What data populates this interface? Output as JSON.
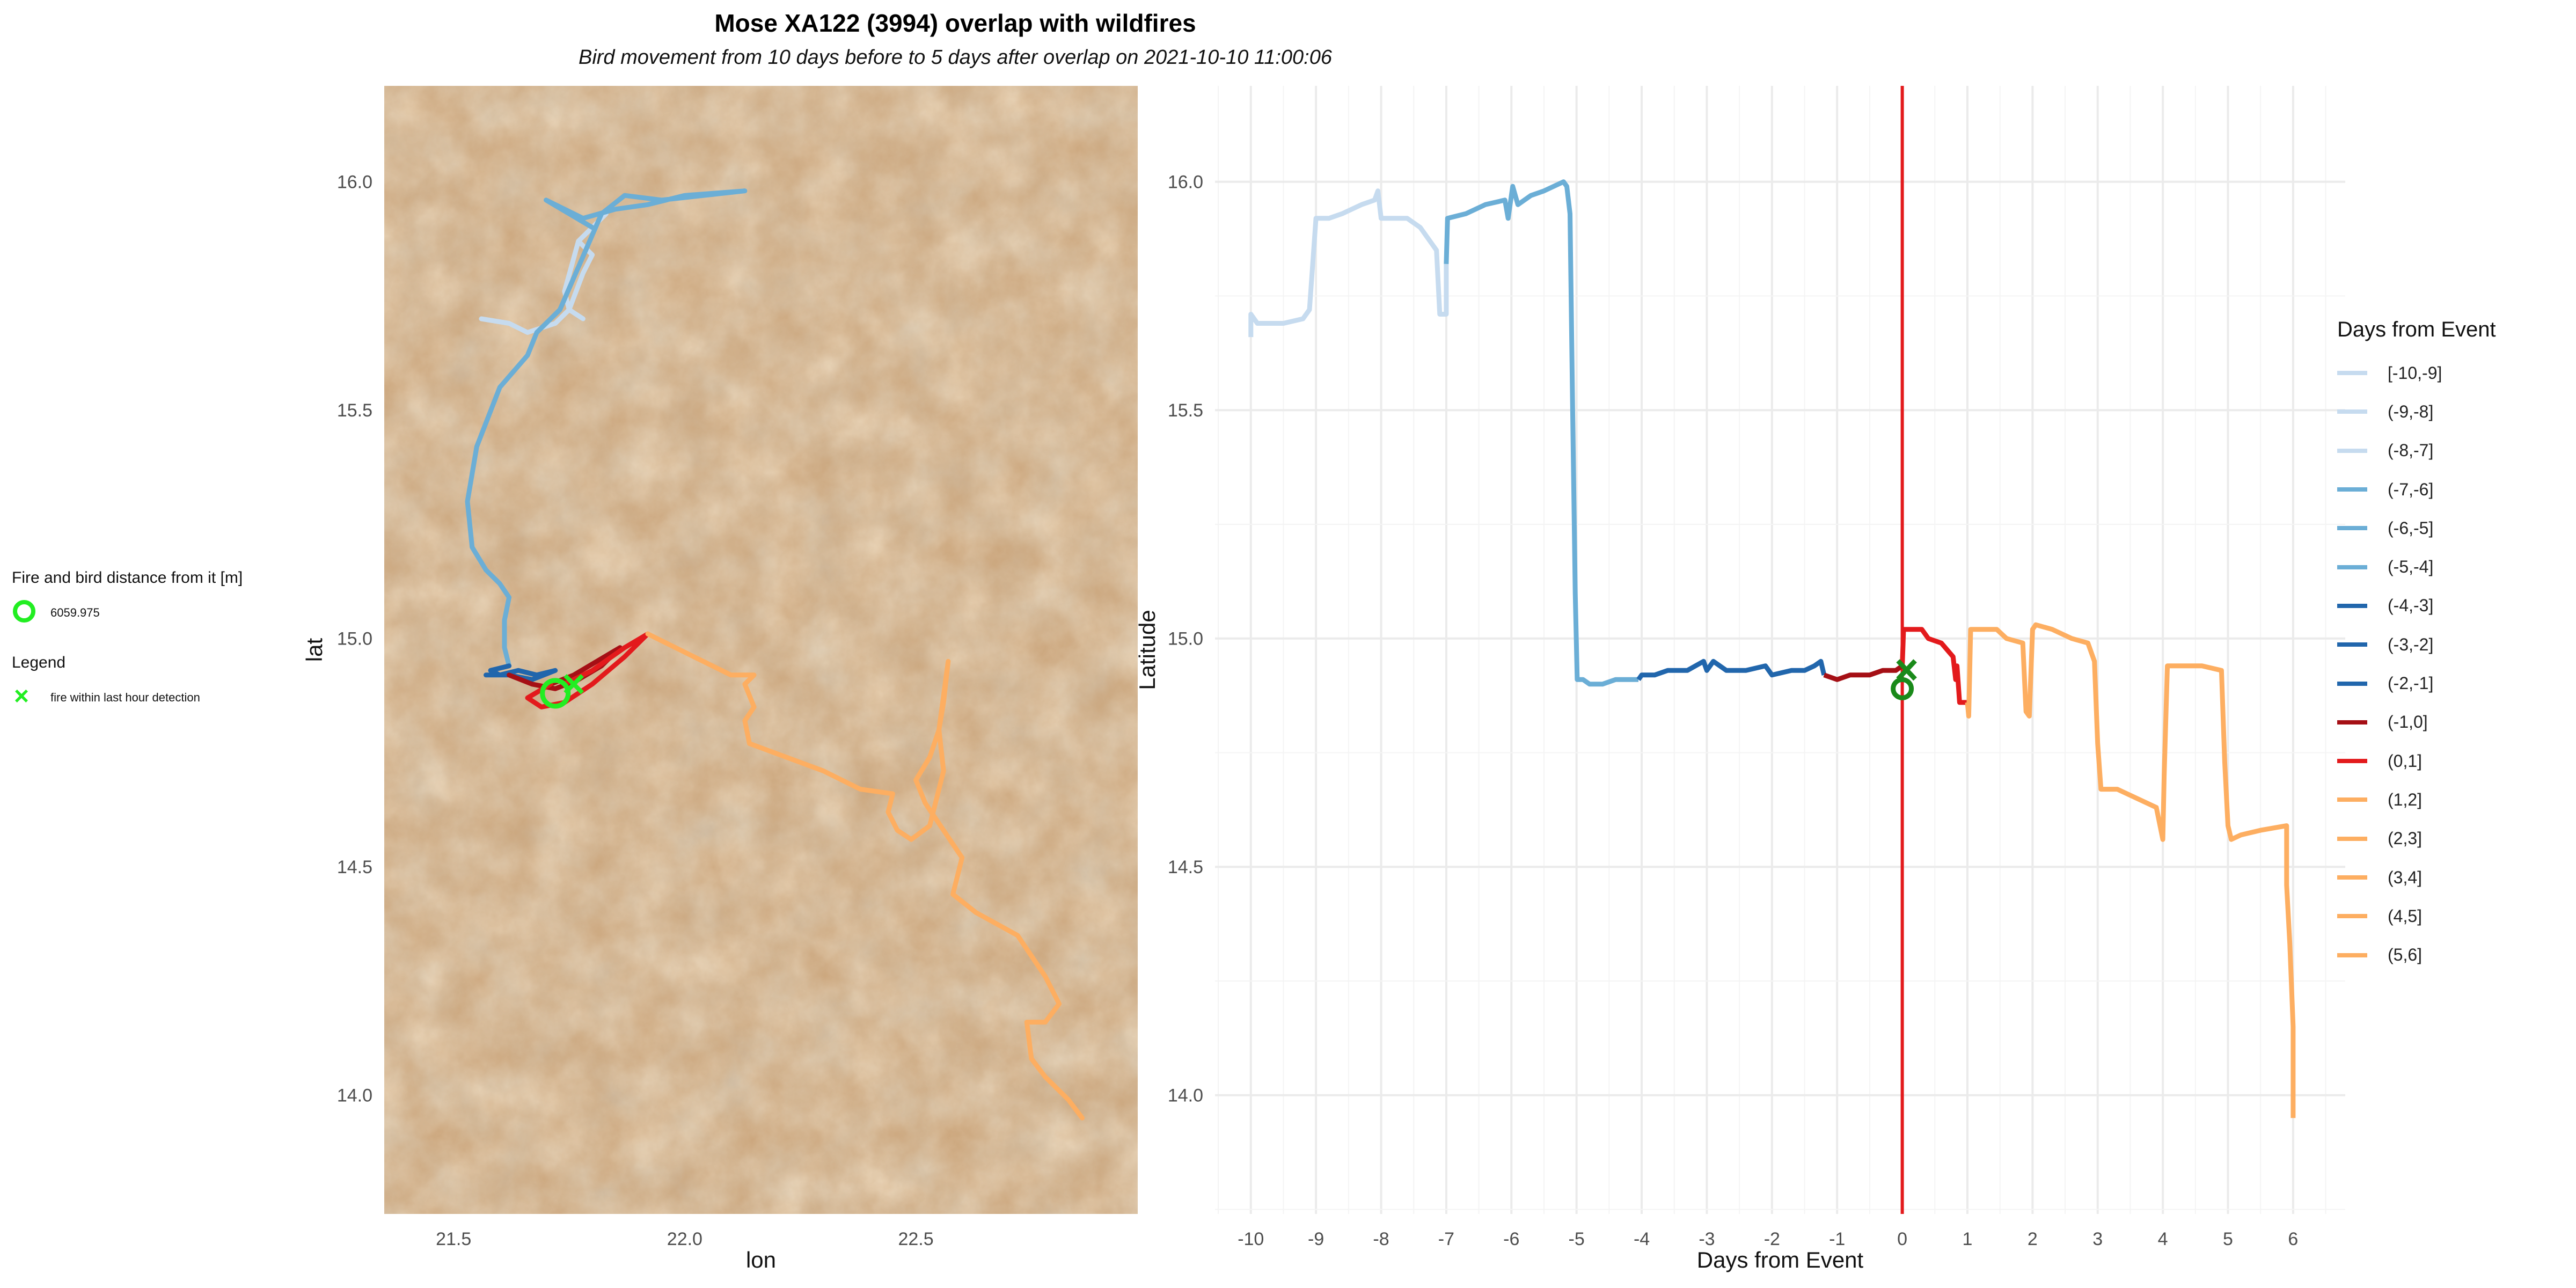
{
  "title": "Mose XA122 (3994) overlap with wildfires",
  "subtitle": "Bird movement from 10 days before to 5 days after overlap on 2021-10-10 11:00:06",
  "left_legend": {
    "distance_title": "Fire and bird distance from it [m]",
    "distance_value": "6059.975",
    "legend_title": "Legend",
    "fire_label": "fire within last hour detection",
    "marker_color": "#22ee22"
  },
  "chart_data": [
    {
      "type": "map",
      "xlabel": "lon",
      "ylabel": "lat",
      "xlim": [
        21.35,
        22.98
      ],
      "ylim": [
        13.74,
        16.21
      ],
      "xticks": [
        "21.5",
        "22.0",
        "22.5"
      ],
      "yticks": [
        "14.0",
        "14.5",
        "15.0",
        "15.5",
        "16.0"
      ],
      "basemap": "satellite imagery",
      "tracks": [
        {
          "color": "#c6dbef",
          "points": [
            [
              21.56,
              15.7
            ],
            [
              21.62,
              15.69
            ],
            [
              21.66,
              15.67
            ],
            [
              21.72,
              15.69
            ],
            [
              21.75,
              15.72
            ],
            [
              21.78,
              15.8
            ],
            [
              21.8,
              15.84
            ],
            [
              21.77,
              15.87
            ],
            [
              21.8,
              15.9
            ],
            [
              21.83,
              15.93
            ],
            [
              21.77,
              15.87
            ],
            [
              21.74,
              15.76
            ],
            [
              21.75,
              15.72
            ],
            [
              21.78,
              15.7
            ]
          ]
        },
        {
          "color": "#6baed6",
          "points": [
            [
              21.8,
              15.9
            ],
            [
              21.7,
              15.96
            ],
            [
              21.78,
              15.92
            ],
            [
              21.85,
              15.94
            ],
            [
              21.92,
              15.95
            ],
            [
              22.0,
              15.97
            ],
            [
              22.13,
              15.98
            ],
            [
              21.95,
              15.96
            ],
            [
              21.87,
              15.97
            ],
            [
              21.82,
              15.93
            ],
            [
              21.79,
              15.86
            ],
            [
              21.76,
              15.79
            ],
            [
              21.73,
              15.72
            ],
            [
              21.68,
              15.67
            ],
            [
              21.66,
              15.62
            ],
            [
              21.6,
              15.55
            ],
            [
              21.55,
              15.42
            ],
            [
              21.53,
              15.3
            ],
            [
              21.54,
              15.2
            ],
            [
              21.57,
              15.15
            ],
            [
              21.6,
              15.12
            ],
            [
              21.62,
              15.09
            ],
            [
              21.61,
              15.04
            ],
            [
              21.61,
              14.98
            ],
            [
              21.62,
              14.94
            ]
          ]
        },
        {
          "color": "#2166ac",
          "points": [
            [
              21.62,
              14.94
            ],
            [
              21.58,
              14.93
            ],
            [
              21.6,
              14.92
            ],
            [
              21.64,
              14.93
            ],
            [
              21.68,
              14.92
            ],
            [
              21.72,
              14.93
            ],
            [
              21.67,
              14.91
            ],
            [
              21.62,
              14.92
            ],
            [
              21.57,
              14.92
            ]
          ]
        },
        {
          "color": "#a50f15",
          "points": [
            [
              21.62,
              14.92
            ],
            [
              21.67,
              14.9
            ],
            [
              21.72,
              14.89
            ],
            [
              21.77,
              14.91
            ],
            [
              21.82,
              14.94
            ],
            [
              21.86,
              14.98
            ],
            [
              21.81,
              14.95
            ],
            [
              21.76,
              14.92
            ],
            [
              21.71,
              14.9
            ]
          ]
        },
        {
          "color": "#e31a1c",
          "points": [
            [
              21.71,
              14.9
            ],
            [
              21.66,
              14.87
            ],
            [
              21.69,
              14.85
            ],
            [
              21.74,
              14.86
            ],
            [
              21.8,
              14.9
            ],
            [
              21.87,
              14.96
            ],
            [
              21.92,
              15.01
            ],
            [
              21.87,
              14.98
            ],
            [
              21.8,
              14.93
            ],
            [
              21.74,
              14.9
            ]
          ]
        },
        {
          "color": "#fdae61",
          "points": [
            [
              21.92,
              15.01
            ],
            [
              22.02,
              14.96
            ],
            [
              22.1,
              14.92
            ],
            [
              22.15,
              14.92
            ],
            [
              22.13,
              14.9
            ],
            [
              22.15,
              14.85
            ],
            [
              22.13,
              14.82
            ],
            [
              22.14,
              14.77
            ],
            [
              22.3,
              14.71
            ],
            [
              22.38,
              14.67
            ],
            [
              22.45,
              14.66
            ],
            [
              22.44,
              14.62
            ],
            [
              22.46,
              14.58
            ],
            [
              22.49,
              14.56
            ],
            [
              22.53,
              14.59
            ],
            [
              22.56,
              14.71
            ],
            [
              22.55,
              14.8
            ],
            [
              22.56,
              14.86
            ],
            [
              22.57,
              14.95
            ],
            [
              22.55,
              14.8
            ],
            [
              22.53,
              14.74
            ],
            [
              22.5,
              14.69
            ],
            [
              22.52,
              14.64
            ],
            [
              22.56,
              14.58
            ],
            [
              22.6,
              14.52
            ],
            [
              22.58,
              14.44
            ],
            [
              22.63,
              14.4
            ],
            [
              22.72,
              14.35
            ],
            [
              22.78,
              14.26
            ],
            [
              22.81,
              14.2
            ],
            [
              22.78,
              14.16
            ],
            [
              22.74,
              14.16
            ],
            [
              22.75,
              14.08
            ],
            [
              22.78,
              14.04
            ],
            [
              22.83,
              13.99
            ],
            [
              22.86,
              13.95
            ]
          ]
        }
      ],
      "fire_point": {
        "lon": 21.76,
        "lat": 14.9
      },
      "bird_point": {
        "lon": 21.72,
        "lat": 14.88
      }
    },
    {
      "type": "line",
      "xlabel": "Days from Event",
      "ylabel": "Latitude",
      "xlim": [
        -10.55,
        6.8
      ],
      "ylim": [
        13.74,
        16.21
      ],
      "xticks": [
        "-10",
        "-9",
        "-8",
        "-7",
        "-6",
        "-5",
        "-4",
        "-3",
        "-2",
        "-1",
        "0",
        "1",
        "2",
        "3",
        "4",
        "5",
        "6"
      ],
      "yticks": [
        "14.0",
        "14.5",
        "15.0",
        "15.5",
        "16.0"
      ],
      "event_line_x": 0,
      "event_line_color": "#e31a1c",
      "grid": true,
      "series": [
        {
          "color": "#c6dbef",
          "points": [
            [
              -10.0,
              15.66
            ],
            [
              -10.0,
              15.71
            ],
            [
              -9.9,
              15.69
            ],
            [
              -9.5,
              15.69
            ],
            [
              -9.2,
              15.7
            ],
            [
              -9.1,
              15.72
            ],
            [
              -9.0,
              15.92
            ],
            [
              -8.8,
              15.92
            ],
            [
              -8.6,
              15.93
            ],
            [
              -8.3,
              15.95
            ],
            [
              -8.1,
              15.96
            ],
            [
              -8.05,
              15.98
            ],
            [
              -8.0,
              15.92
            ],
            [
              -7.6,
              15.92
            ],
            [
              -7.4,
              15.9
            ],
            [
              -7.15,
              15.85
            ],
            [
              -7.1,
              15.71
            ],
            [
              -7.0,
              15.71
            ],
            [
              -7.0,
              15.82
            ]
          ]
        },
        {
          "color": "#6baed6",
          "points": [
            [
              -7.0,
              15.82
            ],
            [
              -6.98,
              15.92
            ],
            [
              -6.7,
              15.93
            ],
            [
              -6.4,
              15.95
            ],
            [
              -6.1,
              15.96
            ],
            [
              -6.05,
              15.92
            ],
            [
              -5.98,
              15.99
            ],
            [
              -5.9,
              15.95
            ],
            [
              -5.7,
              15.97
            ],
            [
              -5.5,
              15.98
            ],
            [
              -5.2,
              16.0
            ],
            [
              -5.15,
              15.99
            ],
            [
              -5.1,
              15.93
            ],
            [
              -5.06,
              15.5
            ],
            [
              -5.02,
              15.1
            ],
            [
              -4.99,
              14.91
            ],
            [
              -4.9,
              14.91
            ],
            [
              -4.8,
              14.9
            ],
            [
              -4.6,
              14.9
            ],
            [
              -4.4,
              14.91
            ],
            [
              -4.2,
              14.91
            ],
            [
              -4.05,
              14.91
            ]
          ]
        },
        {
          "color": "#2166ac",
          "points": [
            [
              -4.05,
              14.91
            ],
            [
              -4.0,
              14.92
            ],
            [
              -3.8,
              14.92
            ],
            [
              -3.6,
              14.93
            ],
            [
              -3.3,
              14.93
            ],
            [
              -3.05,
              14.95
            ],
            [
              -3.0,
              14.93
            ],
            [
              -2.9,
              14.95
            ],
            [
              -2.7,
              14.93
            ],
            [
              -2.4,
              14.93
            ],
            [
              -2.1,
              14.94
            ],
            [
              -2.0,
              14.92
            ],
            [
              -1.7,
              14.93
            ],
            [
              -1.5,
              14.93
            ],
            [
              -1.35,
              14.94
            ],
            [
              -1.25,
              14.95
            ],
            [
              -1.2,
              14.92
            ]
          ]
        },
        {
          "color": "#a50f15",
          "points": [
            [
              -1.2,
              14.92
            ],
            [
              -1.0,
              14.91
            ],
            [
              -0.8,
              14.92
            ],
            [
              -0.5,
              14.92
            ],
            [
              -0.3,
              14.93
            ],
            [
              -0.1,
              14.93
            ],
            [
              0.0,
              14.94
            ]
          ]
        },
        {
          "color": "#e31a1c",
          "points": [
            [
              0.0,
              14.94
            ],
            [
              0.02,
              15.02
            ],
            [
              0.3,
              15.02
            ],
            [
              0.4,
              15.0
            ],
            [
              0.6,
              14.99
            ],
            [
              0.78,
              14.96
            ],
            [
              0.82,
              14.91
            ],
            [
              0.84,
              14.94
            ],
            [
              0.88,
              14.86
            ],
            [
              0.95,
              14.86
            ],
            [
              1.0,
              14.86
            ]
          ]
        },
        {
          "color": "#fdae61",
          "points": [
            [
              1.0,
              14.86
            ],
            [
              1.02,
              14.83
            ],
            [
              1.05,
              15.02
            ],
            [
              1.3,
              15.02
            ],
            [
              1.45,
              15.02
            ],
            [
              1.6,
              15.0
            ],
            [
              1.85,
              14.99
            ],
            [
              1.9,
              14.84
            ],
            [
              1.95,
              14.83
            ],
            [
              2.0,
              15.02
            ],
            [
              2.05,
              15.03
            ],
            [
              2.3,
              15.02
            ],
            [
              2.6,
              15.0
            ],
            [
              2.85,
              14.99
            ],
            [
              2.95,
              14.95
            ],
            [
              3.0,
              14.77
            ],
            [
              3.05,
              14.67
            ],
            [
              3.3,
              14.67
            ],
            [
              3.6,
              14.65
            ],
            [
              3.9,
              14.63
            ],
            [
              4.0,
              14.56
            ],
            [
              4.02,
              14.7
            ],
            [
              4.07,
              14.94
            ],
            [
              4.3,
              14.94
            ],
            [
              4.6,
              14.94
            ],
            [
              4.9,
              14.93
            ],
            [
              4.95,
              14.73
            ],
            [
              5.0,
              14.59
            ],
            [
              5.05,
              14.56
            ],
            [
              5.2,
              14.57
            ],
            [
              5.5,
              14.58
            ],
            [
              5.9,
              14.59
            ],
            [
              5.9,
              14.46
            ],
            [
              5.95,
              14.33
            ],
            [
              6.0,
              14.15
            ],
            [
              6.0,
              13.95
            ]
          ]
        }
      ],
      "event_point": {
        "x": 0.0,
        "y": 14.89
      },
      "event_point_color": "#1a8a1a"
    }
  ],
  "right_legend": {
    "title": "Days from Event",
    "items": [
      {
        "label": "[-10,-9]",
        "color": "#c6dbef"
      },
      {
        "label": "(-9,-8]",
        "color": "#c6dbef"
      },
      {
        "label": "(-8,-7]",
        "color": "#c6dbef"
      },
      {
        "label": "(-7,-6]",
        "color": "#6baed6"
      },
      {
        "label": "(-6,-5]",
        "color": "#6baed6"
      },
      {
        "label": "(-5,-4]",
        "color": "#6baed6"
      },
      {
        "label": "(-4,-3]",
        "color": "#2166ac"
      },
      {
        "label": "(-3,-2]",
        "color": "#2166ac"
      },
      {
        "label": "(-2,-1]",
        "color": "#2166ac"
      },
      {
        "label": "(-1,0]",
        "color": "#a50f15"
      },
      {
        "label": "(0,1]",
        "color": "#e31a1c"
      },
      {
        "label": "(1,2]",
        "color": "#fdae61"
      },
      {
        "label": "(2,3]",
        "color": "#fdae61"
      },
      {
        "label": "(3,4]",
        "color": "#fdae61"
      },
      {
        "label": "(4,5]",
        "color": "#fdae61"
      },
      {
        "label": "(5,6]",
        "color": "#fdae61"
      }
    ]
  }
}
